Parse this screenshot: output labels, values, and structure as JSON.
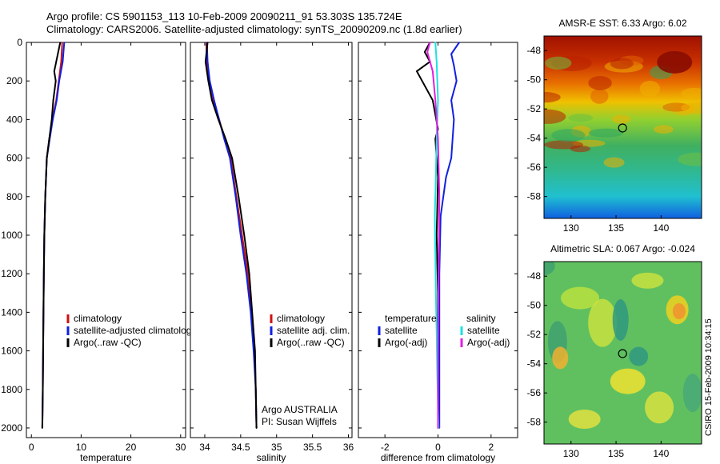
{
  "title_line1": "Argo profile: CS 5901153_113 10-Feb-2009 20090211_91 53.303S 135.724E",
  "title_line2": "Climatology: CARS2006. Satellite-adjusted climatology: synTS_20090209.nc (1.8d earlier)",
  "footer_stamp": "CSIRO 15-Feb-2009 10:34:15",
  "colors": {
    "climatology": "#d01010",
    "satellite": "#1020e0",
    "argo": "#000000",
    "sal_satellite": "#20e0e0",
    "sal_argo": "#e020e0"
  },
  "chart_data": [
    {
      "type": "line",
      "xlabel": "temperature",
      "ylabel": "",
      "xlim": [
        -1,
        31
      ],
      "ylim": [
        2050,
        0
      ],
      "xticks": [
        0,
        10,
        20,
        30
      ],
      "yticks": [
        0,
        200,
        400,
        600,
        800,
        1000,
        1200,
        1400,
        1600,
        1800,
        2000
      ],
      "legend_placement": "lower-left",
      "legend_labels": [
        "climatology",
        "satellite-adjusted climatology",
        "Argo(..raw -QC)"
      ],
      "series": [
        {
          "name": "climatology",
          "color": "#d01010",
          "x": [
            6.2,
            6.0,
            5.5,
            5.0,
            4.2,
            3.6,
            3.1,
            2.8,
            2.6,
            2.5,
            2.4,
            2.3,
            2.2
          ],
          "y": [
            0,
            100,
            200,
            300,
            400,
            500,
            600,
            800,
            1000,
            1200,
            1500,
            1800,
            2000
          ]
        },
        {
          "name": "satellite-adjusted climatology",
          "color": "#1020e0",
          "x": [
            6.6,
            6.3,
            5.6,
            5.1,
            4.3,
            3.7,
            3.1,
            2.8,
            2.6,
            2.5,
            2.4,
            2.3,
            2.2
          ],
          "y": [
            0,
            100,
            200,
            300,
            400,
            500,
            600,
            800,
            1000,
            1200,
            1500,
            1800,
            2000
          ]
        },
        {
          "name": "Argo(..raw -QC)",
          "color": "#000000",
          "x": [
            5.8,
            5.4,
            4.6,
            4.9,
            4.4,
            4.1,
            3.6,
            3.1,
            2.8,
            2.6,
            2.5,
            2.4,
            2.3,
            2.2
          ],
          "y": [
            0,
            50,
            150,
            200,
            300,
            400,
            500,
            600,
            800,
            1000,
            1200,
            1500,
            1800,
            2000
          ]
        }
      ]
    },
    {
      "type": "line",
      "xlabel": "salinity",
      "ylabel": "",
      "xlim": [
        33.8,
        36.05
      ],
      "ylim": [
        2050,
        0
      ],
      "xticks": [
        34,
        34.5,
        35,
        35.5,
        36
      ],
      "yticks": [
        0,
        200,
        400,
        600,
        800,
        1000,
        1200,
        1400,
        1600,
        1800,
        2000
      ],
      "legend_placement": "lower-left",
      "legend_labels": [
        "climatology",
        "satellite adj. clim.",
        "Argo(..raw -QC)"
      ],
      "annotation": [
        "Argo AUSTRALIA",
        "PI: Susan Wijffels"
      ],
      "series": [
        {
          "name": "climatology",
          "color": "#d01010",
          "x": [
            34.02,
            34.03,
            34.06,
            34.12,
            34.2,
            34.28,
            34.36,
            34.44,
            34.52,
            34.6,
            34.65,
            34.69,
            34.71,
            34.72
          ],
          "y": [
            0,
            100,
            200,
            300,
            400,
            500,
            600,
            800,
            1000,
            1200,
            1400,
            1600,
            1800,
            2000
          ]
        },
        {
          "name": "satellite adj. clim.",
          "color": "#1020e0",
          "x": [
            34.03,
            34.04,
            34.07,
            34.13,
            34.2,
            34.27,
            34.35,
            34.43,
            34.5,
            34.58,
            34.64,
            34.68,
            34.71,
            34.72
          ],
          "y": [
            0,
            100,
            200,
            300,
            400,
            500,
            600,
            800,
            1000,
            1200,
            1400,
            1600,
            1800,
            2000
          ]
        },
        {
          "name": "Argo(..raw -QC)",
          "color": "#000000",
          "x": [
            34.04,
            34.01,
            34.05,
            34.1,
            34.19,
            34.29,
            34.38,
            34.47,
            34.55,
            34.62,
            34.66,
            34.7,
            34.71,
            34.72
          ],
          "y": [
            0,
            100,
            200,
            300,
            400,
            500,
            600,
            800,
            1000,
            1200,
            1400,
            1600,
            1800,
            2000
          ]
        }
      ]
    },
    {
      "type": "line",
      "xlabel": "difference from climatology",
      "ylabel": "",
      "xlim": [
        -3,
        3
      ],
      "ylim": [
        2050,
        0
      ],
      "xticks": [
        -2,
        0,
        2
      ],
      "yticks": [
        0,
        200,
        400,
        600,
        800,
        1000,
        1200,
        1400,
        1600,
        1800,
        2000
      ],
      "legend_placement": "lower-center",
      "legend_headers": [
        "temperature",
        "salinity"
      ],
      "legend_labels_temperature": [
        "satellite",
        "Argo(-adj)"
      ],
      "legend_labels_salinity": [
        "satellite",
        "Argo(-adj)"
      ],
      "series": [
        {
          "name": "temperature satellite",
          "color": "#1020e0",
          "x": [
            0.8,
            0.5,
            0.6,
            0.7,
            0.5,
            0.6,
            0.5,
            0.3,
            0.1,
            0.05,
            0.05,
            0.05,
            0.05,
            0.05
          ],
          "y": [
            0,
            60,
            120,
            200,
            300,
            400,
            600,
            700,
            900,
            1200,
            1400,
            1600,
            1800,
            2000
          ]
        },
        {
          "name": "temperature Argo(-adj)",
          "color": "#000000",
          "x": [
            -0.3,
            -0.5,
            -0.3,
            -0.8,
            -0.2,
            0.0,
            -0.1,
            -0.05,
            0.0,
            -0.05,
            0.0,
            0.0,
            0.0
          ],
          "y": [
            0,
            50,
            100,
            150,
            300,
            450,
            500,
            600,
            700,
            1000,
            1300,
            1700,
            2000
          ]
        },
        {
          "name": "salinity satellite",
          "color": "#20e0e0",
          "x": [
            -0.1,
            -0.05,
            0.0,
            -0.05,
            -0.08,
            -0.1,
            -0.12,
            -0.1,
            -0.08,
            -0.05,
            -0.03,
            0.0,
            0.02
          ],
          "y": [
            0,
            100,
            300,
            500,
            700,
            800,
            900,
            1100,
            1300,
            1500,
            1700,
            1900,
            2000
          ]
        },
        {
          "name": "salinity Argo(-adj)",
          "color": "#e020e0",
          "x": [
            -0.3,
            -0.4,
            -0.2,
            -0.1,
            0.0,
            0.05,
            0.02,
            0.0,
            0.0
          ],
          "y": [
            0,
            50,
            150,
            300,
            500,
            800,
            1200,
            1600,
            2000
          ]
        }
      ]
    },
    {
      "type": "heatmap",
      "title": "AMSR-E SST: 6.33  Argo: 6.02",
      "xlim": [
        127,
        144.5
      ],
      "ylim": [
        -59.5,
        -47
      ],
      "xticks": [
        130,
        135,
        140
      ],
      "yticks": [
        -48,
        -50,
        -52,
        -54,
        -56,
        -58
      ],
      "marker": {
        "lon": 135.724,
        "lat": -53.303
      }
    },
    {
      "type": "heatmap",
      "title": "Altimetric SLA: 0.067  Argo: -0.024",
      "xlim": [
        127,
        144.5
      ],
      "ylim": [
        -59.5,
        -47
      ],
      "xticks": [
        130,
        135,
        140
      ],
      "yticks": [
        -48,
        -50,
        -52,
        -54,
        -56,
        -58
      ],
      "marker": {
        "lon": 135.724,
        "lat": -53.303
      }
    }
  ]
}
